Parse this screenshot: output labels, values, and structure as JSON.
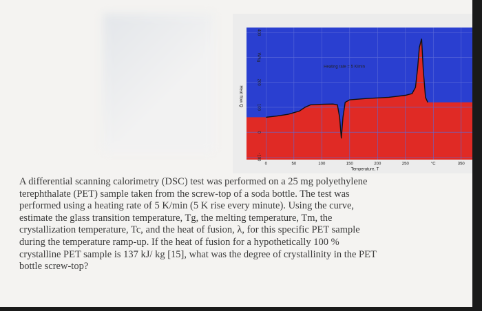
{
  "chart_data": {
    "type": "line",
    "xlabel": "Temperature, T",
    "ylabel": "Heat flow Q",
    "annotation": "Heating rate = 5 K/min",
    "x": [
      0,
      20,
      40,
      60,
      70,
      80,
      100,
      120,
      128,
      132,
      135,
      138,
      142,
      150,
      180,
      220,
      250,
      262,
      268,
      272,
      275,
      279,
      282,
      286,
      290
    ],
    "series": [
      {
        "name": "DSC",
        "color": "#111111",
        "values": [
          60,
          65,
          72,
          85,
          100,
          110,
          112,
          113,
          110,
          60,
          -25,
          60,
          120,
          130,
          135,
          140,
          148,
          155,
          180,
          260,
          340,
          375,
          250,
          140,
          120
        ]
      }
    ],
    "xlim": [
      -35,
      375
    ],
    "ylim": [
      -110,
      420
    ],
    "xticks": [
      0,
      50,
      100,
      150,
      200,
      250,
      {
        "value": 300,
        "label": "°C"
      },
      350
    ],
    "yticks": [
      -100,
      0,
      100,
      200,
      {
        "value": 300,
        "label": "W/kg"
      },
      400
    ],
    "grid": true,
    "fill_below": "#e02a25",
    "fill_above": "#2a3fd0"
  },
  "text": {
    "lines": [
      "A differential scanning calorimetry (DSC) test was performed on a 25 mg polyethylene",
      "terephthalate (PET) sample taken from the screw-top of a soda bottle. The test was",
      "performed using a heating rate of 5 K/min (5 K rise every minute). Using the curve,",
      "estimate the glass transition temperature, Tg, the melting temperature, Tm, the",
      "crystallization temperature, Tc, and the heat of fusion, λ, for this specific PET sample",
      "during the temperature ramp-up. If the heat of fusion for a hypothetically 100 %",
      "crystalline PET sample is 137 kJ/ kg [15], what was the degree of crystallinity in the PET",
      "bottle screw-top?"
    ]
  }
}
